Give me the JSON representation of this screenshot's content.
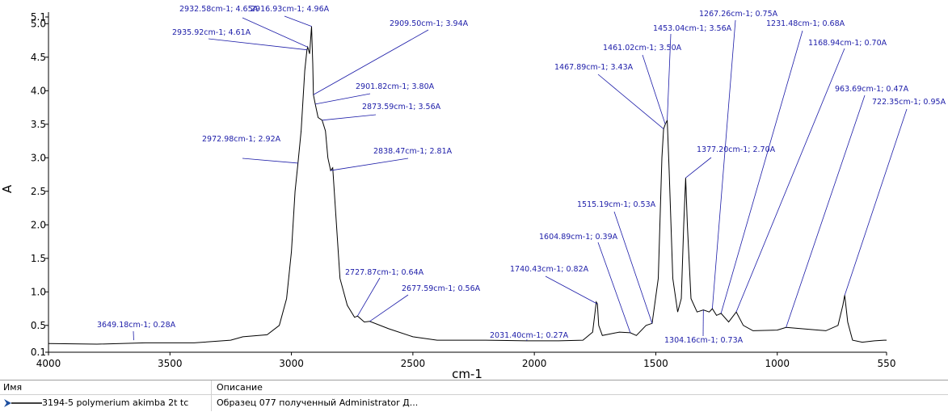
{
  "chart_data": {
    "type": "line",
    "x_label": "cm-1",
    "y_label": "A",
    "xlim": [
      4000,
      550
    ],
    "ylim": [
      0.1,
      5.1
    ],
    "xticks": [
      4000,
      3500,
      3000,
      2500,
      2000,
      1500,
      1000,
      550
    ],
    "yticks": [
      0.1,
      0.5,
      {
        "value": 1,
        "label": "1.0"
      },
      1.5,
      {
        "value": 2,
        "label": "2.0"
      },
      2.5,
      {
        "value": 3,
        "label": "3.0"
      },
      3.5,
      {
        "value": 4,
        "label": "4.0"
      },
      4.5,
      {
        "value": 5,
        "label": "5.0"
      },
      5.1
    ],
    "color": "#000000",
    "annotation_color": "#1c1ca8",
    "x": [
      4000,
      3800,
      3600,
      3400,
      3250,
      3200,
      3100,
      3050,
      3020,
      3000,
      2985,
      2972.98,
      2960,
      2945,
      2935.92,
      2932.58,
      2925,
      2916.93,
      2912,
      2909.5,
      2901.82,
      2890,
      2873.59,
      2860,
      2850,
      2838.47,
      2830,
      2820,
      2800,
      2770,
      2740,
      2727.87,
      2700,
      2677.59,
      2600,
      2500,
      2400,
      2200,
      2031.4,
      1900,
      1800,
      1760,
      1745,
      1740.43,
      1735,
      1720,
      1650,
      1604.89,
      1580,
      1540,
      1515.19,
      1490,
      1475,
      1467.89,
      1461.02,
      1453.04,
      1445,
      1430,
      1410,
      1395,
      1385,
      1377.2,
      1370,
      1355,
      1330,
      1304.16,
      1280,
      1267.26,
      1250,
      1231.48,
      1200,
      1168.94,
      1140,
      1100,
      1000,
      963.69,
      900,
      800,
      750,
      730,
      722.35,
      710,
      690,
      650,
      600,
      560,
      550
    ],
    "y": [
      0.23,
      0.22,
      0.24,
      0.24,
      0.28,
      0.33,
      0.36,
      0.5,
      0.9,
      1.6,
      2.5,
      2.92,
      3.4,
      4.3,
      4.61,
      4.65,
      4.55,
      4.96,
      4.4,
      3.94,
      3.8,
      3.6,
      3.56,
      3.4,
      3.0,
      2.81,
      2.85,
      2.3,
      1.2,
      0.8,
      0.62,
      0.64,
      0.55,
      0.56,
      0.45,
      0.33,
      0.28,
      0.28,
      0.27,
      0.27,
      0.28,
      0.4,
      0.85,
      0.82,
      0.5,
      0.35,
      0.4,
      0.39,
      0.35,
      0.5,
      0.53,
      1.2,
      3.0,
      3.43,
      3.5,
      3.56,
      2.8,
      1.2,
      0.7,
      0.9,
      2.0,
      2.7,
      2.0,
      0.9,
      0.7,
      0.73,
      0.7,
      0.75,
      0.65,
      0.68,
      0.55,
      0.7,
      0.5,
      0.42,
      0.43,
      0.47,
      0.45,
      0.42,
      0.5,
      0.8,
      0.95,
      0.55,
      0.28,
      0.25,
      0.27,
      0.28,
      0.28
    ],
    "annotations": [
      {
        "label": "2932.58cm-1; 4.65A",
        "x": 2932.58,
        "y": 4.65
      },
      {
        "label": "2916.93cm-1; 4.96A",
        "x": 2916.93,
        "y": 4.96
      },
      {
        "label": "2935.92cm-1; 4.61A",
        "x": 2935.92,
        "y": 4.61
      },
      {
        "label": "2909.50cm-1; 3.94A",
        "x": 2909.5,
        "y": 3.94
      },
      {
        "label": "2901.82cm-1; 3.80A",
        "x": 2901.82,
        "y": 3.8
      },
      {
        "label": "2873.59cm-1; 3.56A",
        "x": 2873.59,
        "y": 3.56
      },
      {
        "label": "2972.98cm-1; 2.92A",
        "x": 2972.98,
        "y": 2.92
      },
      {
        "label": "2838.47cm-1; 2.81A",
        "x": 2838.47,
        "y": 2.81
      },
      {
        "label": "2727.87cm-1; 0.64A",
        "x": 2727.87,
        "y": 0.64
      },
      {
        "label": "2677.59cm-1; 0.56A",
        "x": 2677.59,
        "y": 0.56
      },
      {
        "label": "3649.18cm-1; 0.28A",
        "x": 3649.18,
        "y": 0.28
      },
      {
        "label": "2031.40cm-1; 0.27A",
        "x": 2031.4,
        "y": 0.27
      },
      {
        "label": "1740.43cm-1; 0.82A",
        "x": 1740.43,
        "y": 0.82
      },
      {
        "label": "1604.89cm-1; 0.39A",
        "x": 1604.89,
        "y": 0.39
      },
      {
        "label": "1515.19cm-1; 0.53A",
        "x": 1515.19,
        "y": 0.53
      },
      {
        "label": "1467.89cm-1; 3.43A",
        "x": 1467.89,
        "y": 3.43
      },
      {
        "label": "1461.02cm-1; 3.50A",
        "x": 1461.02,
        "y": 3.5
      },
      {
        "label": "1453.04cm-1; 3.56A",
        "x": 1453.04,
        "y": 3.56
      },
      {
        "label": "1267.26cm-1; 0.75A",
        "x": 1267.26,
        "y": 0.75
      },
      {
        "label": "1231.48cm-1; 0.68A",
        "x": 1231.48,
        "y": 0.68
      },
      {
        "label": "1168.94cm-1; 0.70A",
        "x": 1168.94,
        "y": 0.7
      },
      {
        "label": "963.69cm-1; 0.47A",
        "x": 963.69,
        "y": 0.47
      },
      {
        "label": "722.35cm-1; 0.95A",
        "x": 722.35,
        "y": 0.95
      },
      {
        "label": "1377.20cm-1; 2.70A",
        "x": 1377.2,
        "y": 2.7
      },
      {
        "label": "1304.16cm-1; 0.73A",
        "x": 1304.16,
        "y": 0.73
      }
    ]
  },
  "table": {
    "header": [
      "Имя",
      "Описание"
    ],
    "rows": [
      [
        "3194-5 polymerium akimba 2t tc",
        "Образец 077 полученный Administrator Д..."
      ]
    ]
  }
}
